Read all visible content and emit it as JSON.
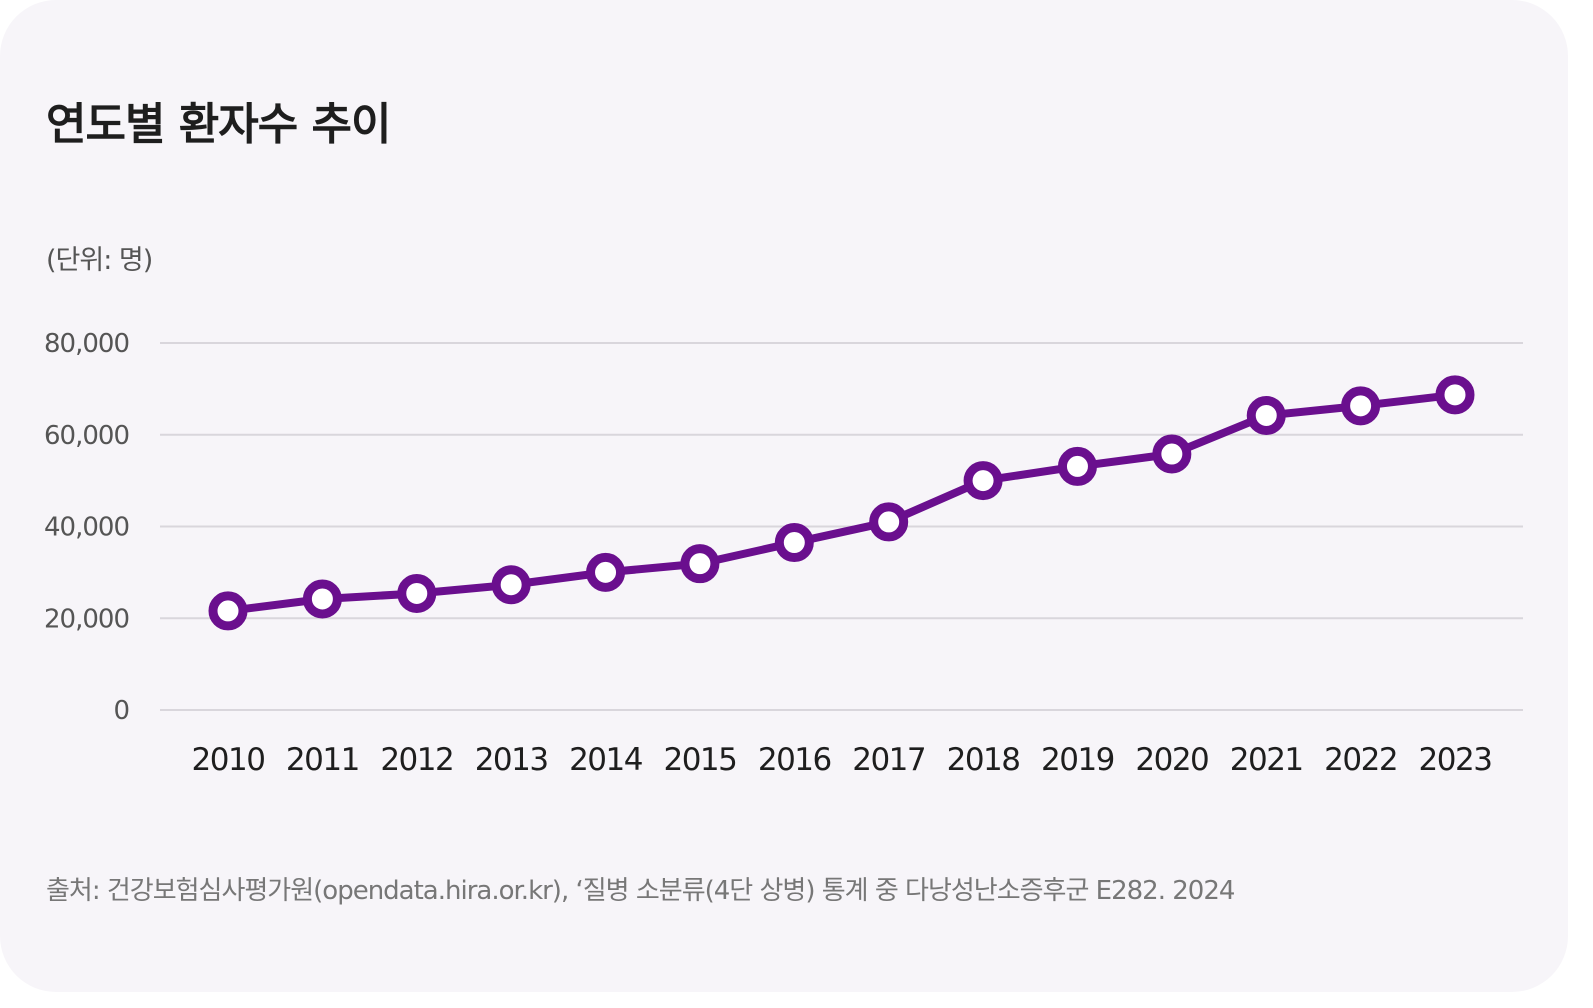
{
  "title": "연도별 환자수 추이",
  "unit_label": "(단위: 명)",
  "source": "출처: 건강보험심사평가원(opendata.hira.or.kr), ‘질병 소분류(4단 상병) 통계 중 다낭성난소증후군 E282. 2024",
  "colors": {
    "line": "#6a0f8e",
    "marker_fill": "#ffffff",
    "grid": "#d9d6dc"
  },
  "chart_data": {
    "type": "line",
    "title": "연도별 환자수 추이",
    "ylabel": "(단위: 명)",
    "xlabel": "",
    "categories": [
      "2010",
      "2011",
      "2012",
      "2013",
      "2014",
      "2015",
      "2016",
      "2017",
      "2018",
      "2019",
      "2020",
      "2021",
      "2022",
      "2023"
    ],
    "values": [
      21600,
      24200,
      25400,
      27300,
      30000,
      31900,
      36500,
      41000,
      50000,
      53100,
      55800,
      64200,
      66300,
      68700
    ],
    "ylim": [
      0,
      80000
    ],
    "yticks": [
      0,
      20000,
      40000,
      60000,
      80000
    ],
    "ytick_labels": [
      "0",
      "20,000",
      "40,000",
      "60,000",
      "80,000"
    ],
    "grid": true,
    "legend": "none"
  }
}
